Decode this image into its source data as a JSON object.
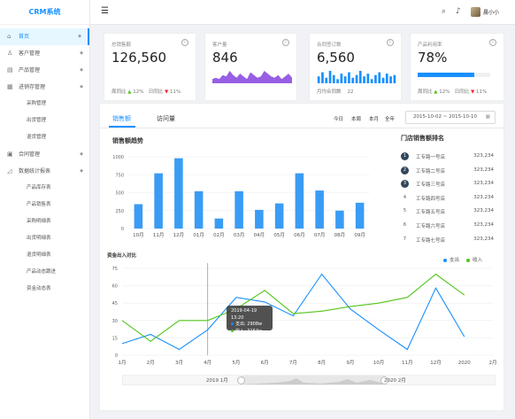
{
  "brand": "CRM系统",
  "nav": [
    {
      "label": "首页",
      "icon": "home-icon",
      "glyph": "⌂",
      "active": true
    },
    {
      "label": "客户管理",
      "icon": "user-icon",
      "glyph": "♙"
    },
    {
      "label": "产品管理",
      "icon": "box-icon",
      "glyph": "▤"
    },
    {
      "label": "进销存管理",
      "icon": "grid-icon",
      "glyph": "▦"
    }
  ],
  "nav_sub_stock": [
    "采购管理",
    "出货管理",
    "退货管理"
  ],
  "nav2": [
    {
      "label": "合同管理",
      "icon": "contract-icon",
      "glyph": "▣"
    },
    {
      "label": "数据统计报表",
      "icon": "chart-icon",
      "glyph": "◿"
    }
  ],
  "nav_sub_report": [
    "产品库存表",
    "产品销售表",
    "采购明细表",
    "出货明细表",
    "退货明细表",
    "产品动态跟进",
    "资金动态表"
  ],
  "topbar": {
    "user": "晨小小"
  },
  "cards": [
    {
      "label": "总销售额",
      "value": "126,560",
      "f1": "周同比",
      "f1v": "12%",
      "f2": "日同比",
      "f2v": "11%"
    },
    {
      "label": "客户量",
      "value": "846"
    },
    {
      "label": "合同签订数",
      "value": "6,560",
      "f1": "月均合同数",
      "f1v": "22"
    },
    {
      "label": "产品利用率",
      "value": "78%",
      "progress": 0.78,
      "f1": "周同比",
      "f1v": "12%",
      "f2": "日同比",
      "f2v": "11%"
    }
  ],
  "tabs": [
    "销售额",
    "访问量"
  ],
  "ranges": [
    "今日",
    "本周",
    "本月",
    "全年"
  ],
  "date_range": "2015-10-02  ~  2015-10-10",
  "sales_title": "销售额趋势",
  "rank_title": "门店销售额排名",
  "ranking": [
    {
      "no": "1",
      "name": "工专路一号店",
      "amount": "323,234"
    },
    {
      "no": "2",
      "name": "工专路二号店",
      "amount": "323,234"
    },
    {
      "no": "3",
      "name": "工专路三号店",
      "amount": "323,234"
    },
    {
      "no": "4",
      "name": "工专路四号店",
      "amount": "323,234"
    },
    {
      "no": "5",
      "name": "工专路五号店",
      "amount": "323,234"
    },
    {
      "no": "6",
      "name": "工专路六号店",
      "amount": "323,234"
    },
    {
      "no": "7",
      "name": "工专路七号店",
      "amount": "323,234"
    }
  ],
  "fund_title": "资金出入对比",
  "tooltip": {
    "date": "2019-04-19  13:20",
    "l1": "支出:",
    "v1": "2908w",
    "l2": "收入:",
    "v2": "3164w"
  },
  "slider": {
    "start": "2019 1月",
    "end": "2020 2月"
  },
  "colors": {
    "accent": "#1890ff",
    "green": "#52c41a",
    "purple": "#975fe4"
  },
  "mini_charts": {
    "customers_area": [
      3,
      4,
      3,
      6,
      5,
      9,
      6,
      4,
      7,
      5,
      3,
      8,
      6,
      4,
      5,
      9,
      7,
      5,
      4,
      6,
      3,
      5,
      7,
      4
    ],
    "contracts_bars": [
      5,
      8,
      4,
      9,
      6,
      3,
      7,
      5,
      8,
      4,
      6,
      9,
      5,
      7,
      3,
      6,
      8,
      4,
      7,
      5,
      6
    ]
  },
  "chart_data": [
    {
      "type": "bar",
      "title": "销售额趋势",
      "categories": [
        "10月",
        "11月",
        "12月",
        "01月",
        "02月",
        "03月",
        "04月",
        "05月",
        "06月",
        "07月",
        "08月",
        "09月"
      ],
      "values": [
        340,
        770,
        980,
        520,
        140,
        520,
        260,
        350,
        770,
        530,
        250,
        360
      ],
      "ylim": [
        0,
        1000
      ],
      "yticks": [
        0,
        250,
        500,
        750,
        1000
      ]
    },
    {
      "type": "line",
      "title": "资金出入对比",
      "categories": [
        "1月",
        "2月",
        "3月",
        "4月",
        "5月",
        "6月",
        "7月",
        "8月",
        "9月",
        "10月",
        "11月",
        "12月",
        "2020",
        "2月"
      ],
      "series": [
        {
          "name": "支出",
          "color": "#1890ff",
          "values": [
            10,
            18,
            5,
            22,
            50,
            46,
            34,
            70,
            40,
            22,
            5,
            58,
            16,
            null
          ]
        },
        {
          "name": "收入",
          "color": "#52c41a",
          "values": [
            30,
            12,
            30,
            30,
            40,
            56,
            36,
            38,
            42,
            45,
            50,
            70,
            52,
            null
          ]
        }
      ],
      "ylim": [
        0,
        75
      ],
      "yticks": [
        0,
        15,
        30,
        45,
        60,
        75
      ]
    }
  ]
}
